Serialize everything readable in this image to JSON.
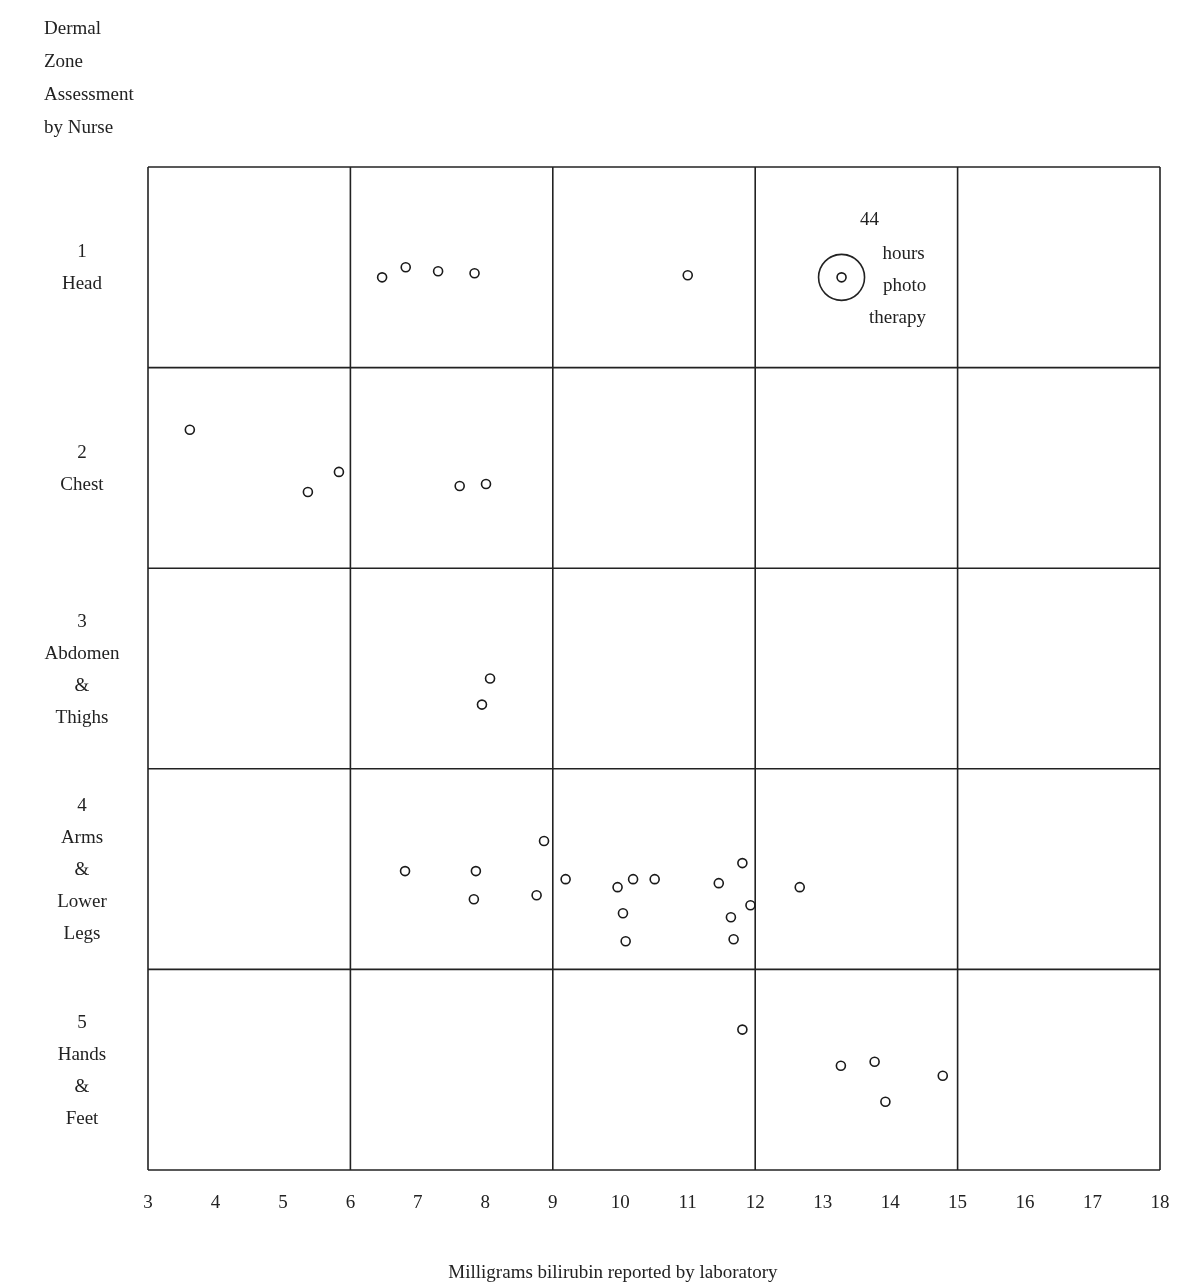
{
  "chart_data": {
    "type": "scatter",
    "ylabel": "Dermal Zone Assessment by Nurse",
    "xlabel": "Milligrams bilirubin reported by laboratory",
    "xlim": [
      3,
      18
    ],
    "xticks": [
      3,
      4,
      5,
      6,
      7,
      8,
      9,
      10,
      11,
      12,
      13,
      14,
      15,
      16,
      17,
      18
    ],
    "ylim": [
      5.5,
      0.5
    ],
    "yticks": [
      {
        "value": 1,
        "label": "1 Head"
      },
      {
        "value": 2,
        "label": "2 Chest"
      },
      {
        "value": 3,
        "label": "3 Abdomen & Thighs"
      },
      {
        "value": 4,
        "label": "4 Arms & Lower Legs"
      },
      {
        "value": 5,
        "label": "5 Hands & Feet"
      }
    ],
    "marker": "circle",
    "ref_lines": [
      {
        "axis": "x",
        "value": 6,
        "color": "#222222"
      },
      {
        "axis": "x",
        "value": 9,
        "color": "#222222"
      },
      {
        "axis": "x",
        "value": 12,
        "color": "#222222"
      },
      {
        "axis": "x",
        "value": 15,
        "color": "#222222"
      },
      {
        "axis": "y",
        "value": 1.5,
        "color": "#222222"
      },
      {
        "axis": "y",
        "value": 2.5,
        "color": "#222222"
      },
      {
        "axis": "y",
        "value": 3.5,
        "color": "#222222"
      },
      {
        "axis": "y",
        "value": 4.5,
        "color": "#222222"
      }
    ],
    "annotations": [
      {
        "text": "44 hours photo therapy",
        "x": 13.28,
        "y": 1.05
      }
    ],
    "series": [
      {
        "color": "#1a1a1a",
        "x": [
          6.47,
          6.82,
          7.3,
          7.84,
          11.0,
          13.28,
          3.62,
          5.37,
          5.83,
          7.62,
          8.01,
          8.07,
          7.95,
          6.81,
          7.86,
          7.83,
          8.87,
          8.76,
          9.19,
          9.96,
          10.19,
          10.51,
          10.04,
          10.08,
          11.46,
          11.81,
          11.93,
          11.64,
          11.68,
          12.66,
          11.81,
          13.27,
          13.77,
          14.78,
          13.93
        ],
        "values": [
          1.05,
          1.0,
          1.02,
          1.03,
          1.04,
          1.05,
          1.81,
          2.12,
          2.02,
          2.09,
          2.08,
          3.05,
          3.18,
          4.01,
          4.01,
          4.15,
          3.86,
          4.13,
          4.05,
          4.09,
          4.05,
          4.05,
          4.22,
          4.36,
          4.07,
          3.97,
          4.18,
          4.24,
          4.35,
          4.09,
          4.8,
          4.98,
          4.96,
          5.03,
          5.16
        ]
      }
    ]
  }
}
